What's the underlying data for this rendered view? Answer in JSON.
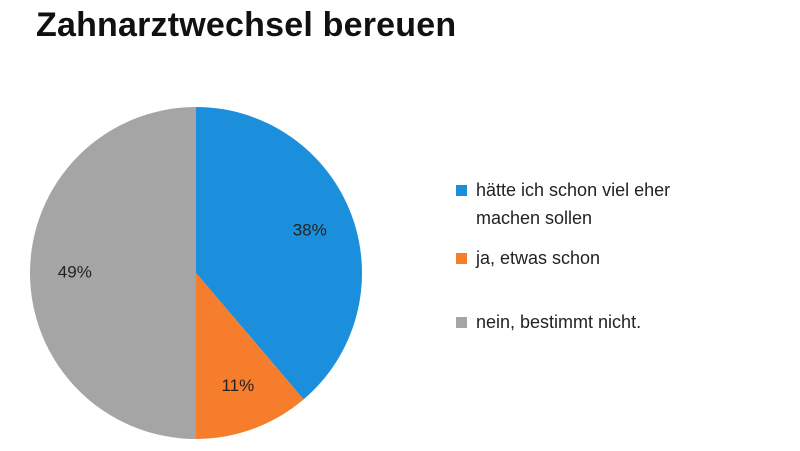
{
  "chart_data": {
    "type": "pie",
    "title": "Zahnarztwechsel bereuen",
    "slices": [
      {
        "label": "hätte ich schon viel eher machen sollen",
        "value": 38,
        "display": "38%",
        "color": "#1c8fdc"
      },
      {
        "label": "ja, etwas schon",
        "value": 11,
        "display": "11%",
        "color": "#f57d2c"
      },
      {
        "label": "nein, bestimmt nicht.",
        "value": 49,
        "display": "49%",
        "color": "#a5a5a5"
      }
    ],
    "legend_position": "right"
  }
}
